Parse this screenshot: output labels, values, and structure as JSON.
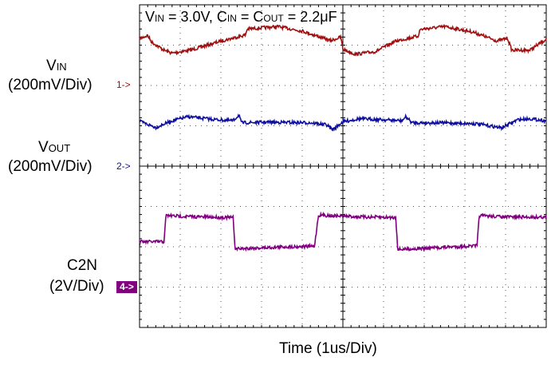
{
  "chart_data": {
    "type": "line",
    "title": {
      "vin_main": "V",
      "vin_sub": "IN",
      "vin_rest": " = 3.0V, C",
      "cin_sub": "IN",
      "mid": " = C",
      "cout_sub": "OUT",
      "tail": " = 2.2μF"
    },
    "xlabel": "Time  (1us/Div)",
    "grid": {
      "divisions_x": 10,
      "divisions_y": 8
    },
    "channels": [
      {
        "name_main": "V",
        "name_sub": "IN",
        "scale": "(200mV/Div)",
        "marker": "1->",
        "color": "#a01010",
        "ref_div": 7.1,
        "points": [
          [
            0.0,
            0.12
          ],
          [
            0.2,
            0.28
          ],
          [
            0.3,
            -0.05
          ],
          [
            0.6,
            -0.45
          ],
          [
            0.8,
            -0.6
          ],
          [
            1.3,
            -0.42
          ],
          [
            2.0,
            0.0
          ],
          [
            2.6,
            0.3
          ],
          [
            2.65,
            0.6
          ],
          [
            3.4,
            0.72
          ],
          [
            4.0,
            0.5
          ],
          [
            4.7,
            0.02
          ],
          [
            4.95,
            0.2
          ],
          [
            5.0,
            -0.4
          ],
          [
            5.3,
            -0.65
          ],
          [
            5.8,
            -0.52
          ],
          [
            6.3,
            0.0
          ],
          [
            6.85,
            0.25
          ],
          [
            6.9,
            0.58
          ],
          [
            7.5,
            0.72
          ],
          [
            8.2,
            0.45
          ],
          [
            8.8,
            0.0
          ],
          [
            9.05,
            0.15
          ],
          [
            9.15,
            -0.45
          ],
          [
            9.6,
            -0.45
          ],
          [
            10.0,
            0.1
          ]
        ]
      },
      {
        "name_main": "V",
        "name_sub": "OUT",
        "scale": "(200mV/Div)",
        "marker": "2->",
        "color": "#1010a0",
        "ref_div": 5.1,
        "points": [
          [
            0.0,
            0.02
          ],
          [
            0.4,
            -0.28
          ],
          [
            0.8,
            0.05
          ],
          [
            1.2,
            0.25
          ],
          [
            1.8,
            0.12
          ],
          [
            2.3,
            0.05
          ],
          [
            2.45,
            0.35
          ],
          [
            2.5,
            -0.05
          ],
          [
            3.2,
            -0.02
          ],
          [
            4.2,
            -0.05
          ],
          [
            4.6,
            -0.15
          ],
          [
            4.75,
            -0.4
          ],
          [
            5.0,
            0.0
          ],
          [
            5.4,
            0.15
          ],
          [
            6.0,
            0.1
          ],
          [
            6.45,
            0.05
          ],
          [
            6.55,
            0.25
          ],
          [
            6.7,
            -0.05
          ],
          [
            7.5,
            -0.05
          ],
          [
            8.3,
            -0.1
          ],
          [
            8.9,
            -0.3
          ],
          [
            9.3,
            0.1
          ],
          [
            9.6,
            0.15
          ],
          [
            10.0,
            0.05
          ]
        ]
      },
      {
        "name_main": "C2N",
        "name_sub": "",
        "scale": "(2V/Div)",
        "marker": "4->",
        "color": "#800080",
        "ref_div": 1.3,
        "points": [
          [
            0.0,
            1.65
          ],
          [
            0.6,
            1.65
          ],
          [
            0.65,
            2.95
          ],
          [
            1.2,
            2.9
          ],
          [
            1.6,
            2.88
          ],
          [
            2.3,
            2.85
          ],
          [
            2.35,
            1.3
          ],
          [
            3.0,
            1.35
          ],
          [
            3.6,
            1.4
          ],
          [
            4.3,
            1.42
          ],
          [
            4.4,
            2.97
          ],
          [
            5.5,
            2.88
          ],
          [
            6.3,
            2.85
          ],
          [
            6.35,
            1.27
          ],
          [
            7.0,
            1.32
          ],
          [
            7.7,
            1.4
          ],
          [
            8.3,
            1.45
          ],
          [
            8.35,
            2.95
          ],
          [
            9.0,
            2.88
          ],
          [
            10.0,
            2.87
          ]
        ]
      }
    ]
  }
}
